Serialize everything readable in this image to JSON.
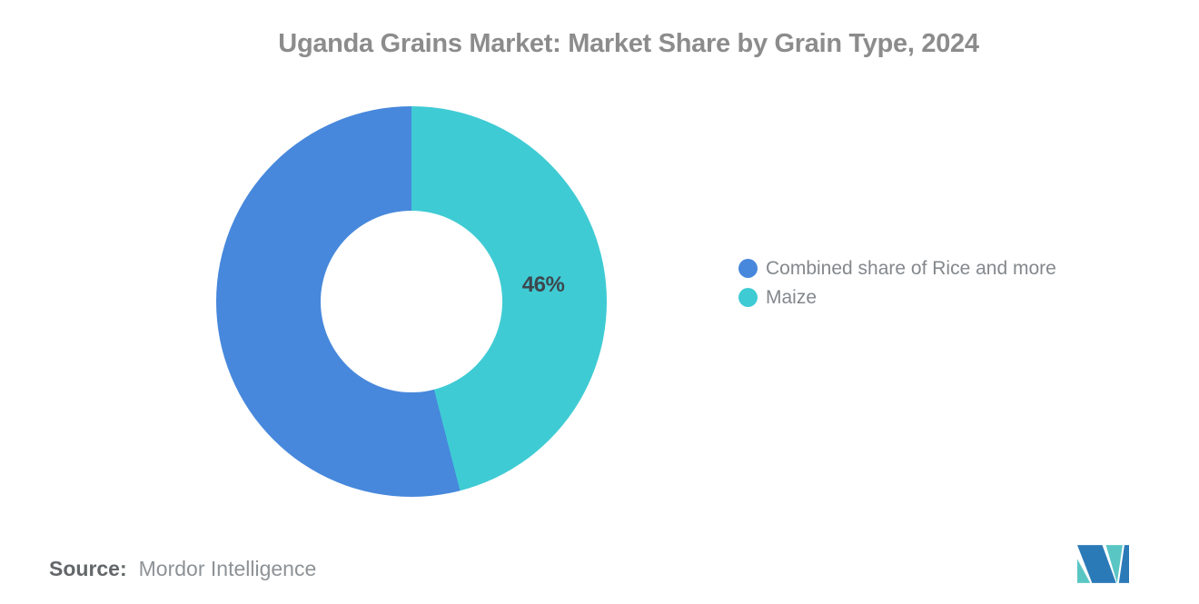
{
  "title": "Uganda Grains Market: Market Share by Grain Type, 2024",
  "chart_data": {
    "type": "pie",
    "variant": "donut",
    "title": "Uganda Grains Market: Market Share by Grain Type, 2024",
    "total": 100,
    "start_angle_deg": 0,
    "direction": "clockwise",
    "inner_radius_ratio": 0.465,
    "legend_position": "right",
    "slices": [
      {
        "label": "Maize",
        "value": 46,
        "color": "#3fcbd4",
        "data_label": "46%"
      },
      {
        "label": "Combined share of Rice and more",
        "value": 54,
        "color": "#4788dc",
        "data_label": ""
      }
    ]
  },
  "legend": {
    "items": [
      {
        "label": "Combined share of Rice and more",
        "color": "#4788dc"
      },
      {
        "label": "Maize",
        "color": "#3fcbd4"
      }
    ]
  },
  "source": {
    "label": "Source:",
    "text": "Mordor Intelligence"
  },
  "logo": {
    "name": "mordor-intelligence-logo",
    "colors": {
      "blue": "#2b7ab8",
      "teal": "#59c6c4"
    }
  }
}
